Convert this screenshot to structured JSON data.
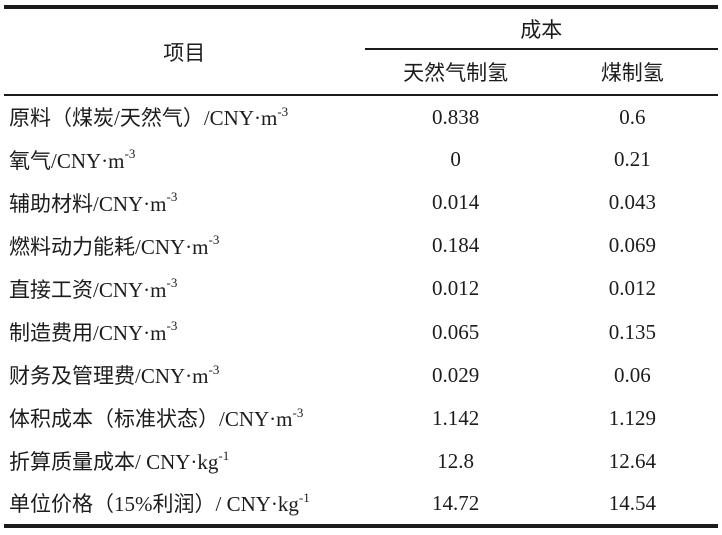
{
  "page": {
    "background": "#ffffff",
    "text_color": "#1c1c1c",
    "rule_color": "#1a1a1a"
  },
  "table": {
    "header": {
      "item": "项目",
      "cost_group": "成本",
      "columns": [
        "天然气制氢",
        "煤制氢"
      ]
    },
    "rows": [
      {
        "label": "原料（煤炭/天然气）/CNY·m",
        "sup": "-3",
        "values": [
          "0.838",
          "0.6"
        ]
      },
      {
        "label": "氧气/CNY·m",
        "sup": "-3",
        "values": [
          "0",
          "0.21"
        ]
      },
      {
        "label": "辅助材料/CNY·m",
        "sup": "-3",
        "values": [
          "0.014",
          "0.043"
        ]
      },
      {
        "label": "燃料动力能耗/CNY·m",
        "sup": "-3",
        "values": [
          "0.184",
          "0.069"
        ]
      },
      {
        "label": "直接工资/CNY·m",
        "sup": "-3",
        "values": [
          "0.012",
          "0.012"
        ]
      },
      {
        "label": "制造费用/CNY·m",
        "sup": "-3",
        "values": [
          "0.065",
          "0.135"
        ]
      },
      {
        "label": "财务及管理费/CNY·m",
        "sup": "-3",
        "values": [
          "0.029",
          "0.06"
        ]
      },
      {
        "label": "体积成本（标准状态）/CNY·m",
        "sup": "-3",
        "values": [
          "1.142",
          "1.129"
        ]
      },
      {
        "label": "折算质量成本/ CNY·kg",
        "sup": "-1",
        "values": [
          "12.8",
          "12.64"
        ]
      },
      {
        "label": "单位价格（15%利润）/ CNY·kg",
        "sup": "-1",
        "values": [
          "14.72",
          "14.54"
        ]
      }
    ]
  }
}
